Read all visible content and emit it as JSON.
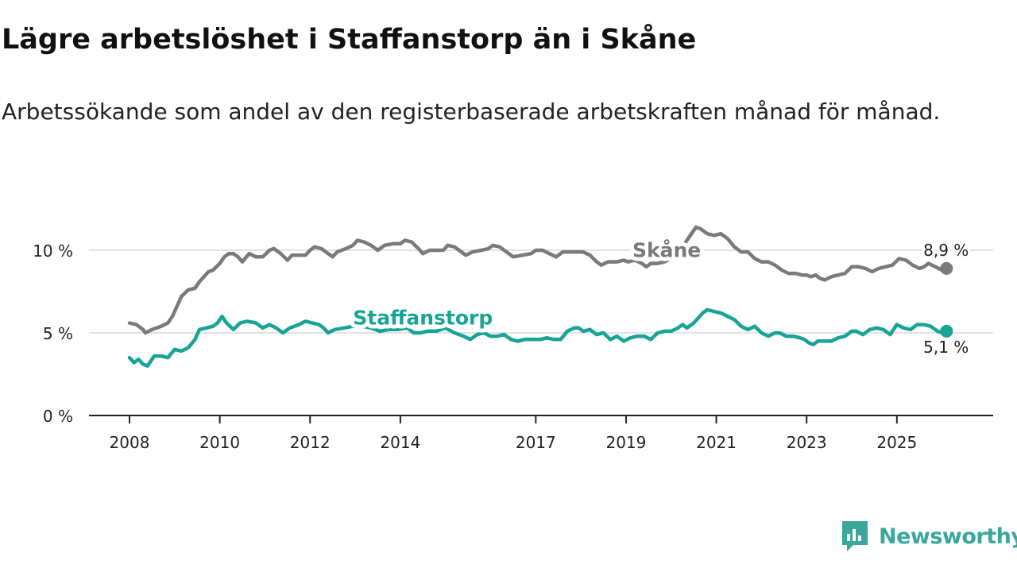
{
  "title": "Lägre arbetslöshet i Staffanstorp än i Skåne",
  "subtitle": "Arbetssökande som andel av den registerbaserade arbetskraften månad för månad.",
  "brand": {
    "name": "Newsworthy",
    "color": "#3aa79a",
    "logo_icon": "newsworthy-chart-bubble-icon"
  },
  "chart_data": {
    "type": "line",
    "title": "Lägre arbetslöshet i Staffanstorp än i Skåne",
    "xlabel": "",
    "ylabel": "",
    "ylim": [
      0,
      12
    ],
    "xlim": [
      2008.0,
      2026.2
    ],
    "grid": true,
    "y_ticks": [
      {
        "value": 0,
        "label": "0 %"
      },
      {
        "value": 5,
        "label": "5 %"
      },
      {
        "value": 10,
        "label": "10 %"
      }
    ],
    "x_ticks": [
      {
        "value": 2008,
        "label": "2008"
      },
      {
        "value": 2010,
        "label": "2010"
      },
      {
        "value": 2012,
        "label": "2012"
      },
      {
        "value": 2014,
        "label": "2014"
      },
      {
        "value": 2017,
        "label": "2017"
      },
      {
        "value": 2019,
        "label": "2019"
      },
      {
        "value": 2021,
        "label": "2021"
      },
      {
        "value": 2023,
        "label": "2023"
      },
      {
        "value": 2025,
        "label": "2025"
      }
    ],
    "series": [
      {
        "name": "Skåne",
        "color": "#7a7a7e",
        "label": "Skåne",
        "end_label": "8,9 %",
        "points": [
          [
            2008.0,
            5.6
          ],
          [
            2008.15,
            5.5
          ],
          [
            2008.3,
            5.2
          ],
          [
            2008.35,
            5.0
          ],
          [
            2008.5,
            5.2
          ],
          [
            2008.7,
            5.4
          ],
          [
            2008.85,
            5.6
          ],
          [
            2008.95,
            6.0
          ],
          [
            2009.05,
            6.6
          ],
          [
            2009.15,
            7.2
          ],
          [
            2009.3,
            7.6
          ],
          [
            2009.45,
            7.7
          ],
          [
            2009.55,
            8.1
          ],
          [
            2009.65,
            8.4
          ],
          [
            2009.75,
            8.7
          ],
          [
            2009.85,
            8.8
          ],
          [
            2010.0,
            9.2
          ],
          [
            2010.1,
            9.6
          ],
          [
            2010.2,
            9.8
          ],
          [
            2010.3,
            9.8
          ],
          [
            2010.4,
            9.6
          ],
          [
            2010.5,
            9.3
          ],
          [
            2010.65,
            9.8
          ],
          [
            2010.8,
            9.6
          ],
          [
            2010.95,
            9.6
          ],
          [
            2011.1,
            10.0
          ],
          [
            2011.2,
            10.1
          ],
          [
            2011.35,
            9.8
          ],
          [
            2011.5,
            9.4
          ],
          [
            2011.6,
            9.7
          ],
          [
            2011.75,
            9.7
          ],
          [
            2011.9,
            9.7
          ],
          [
            2012.0,
            10.0
          ],
          [
            2012.1,
            10.2
          ],
          [
            2012.25,
            10.1
          ],
          [
            2012.4,
            9.8
          ],
          [
            2012.5,
            9.6
          ],
          [
            2012.6,
            9.9
          ],
          [
            2012.8,
            10.1
          ],
          [
            2012.95,
            10.3
          ],
          [
            2013.05,
            10.6
          ],
          [
            2013.2,
            10.5
          ],
          [
            2013.35,
            10.3
          ],
          [
            2013.5,
            10.0
          ],
          [
            2013.65,
            10.3
          ],
          [
            2013.85,
            10.4
          ],
          [
            2014.0,
            10.4
          ],
          [
            2014.1,
            10.6
          ],
          [
            2014.25,
            10.5
          ],
          [
            2014.4,
            10.1
          ],
          [
            2014.5,
            9.8
          ],
          [
            2014.65,
            10.0
          ],
          [
            2014.8,
            10.0
          ],
          [
            2014.95,
            10.0
          ],
          [
            2015.05,
            10.3
          ],
          [
            2015.2,
            10.2
          ],
          [
            2015.35,
            9.9
          ],
          [
            2015.45,
            9.7
          ],
          [
            2015.6,
            9.9
          ],
          [
            2015.8,
            10.0
          ],
          [
            2015.95,
            10.1
          ],
          [
            2016.05,
            10.3
          ],
          [
            2016.2,
            10.2
          ],
          [
            2016.35,
            9.9
          ],
          [
            2016.5,
            9.6
          ],
          [
            2016.7,
            9.7
          ],
          [
            2016.9,
            9.8
          ],
          [
            2017.0,
            10.0
          ],
          [
            2017.15,
            10.0
          ],
          [
            2017.3,
            9.8
          ],
          [
            2017.45,
            9.6
          ],
          [
            2017.6,
            9.9
          ],
          [
            2017.8,
            9.9
          ],
          [
            2017.95,
            9.9
          ],
          [
            2018.05,
            9.9
          ],
          [
            2018.2,
            9.7
          ],
          [
            2018.35,
            9.3
          ],
          [
            2018.45,
            9.1
          ],
          [
            2018.6,
            9.3
          ],
          [
            2018.8,
            9.3
          ],
          [
            2018.95,
            9.4
          ],
          [
            2019.05,
            9.3
          ],
          [
            2019.2,
            9.4
          ],
          [
            2019.35,
            9.2
          ],
          [
            2019.45,
            9.0
          ],
          [
            2019.55,
            9.2
          ],
          [
            2019.7,
            9.2
          ],
          [
            2019.85,
            9.3
          ],
          [
            2020.0,
            9.5
          ],
          [
            2020.2,
            10.0
          ],
          [
            2020.35,
            10.6
          ],
          [
            2020.45,
            11.0
          ],
          [
            2020.55,
            11.4
          ],
          [
            2020.65,
            11.3
          ],
          [
            2020.8,
            11.0
          ],
          [
            2020.95,
            10.9
          ],
          [
            2021.1,
            11.0
          ],
          [
            2021.25,
            10.7
          ],
          [
            2021.4,
            10.2
          ],
          [
            2021.55,
            9.9
          ],
          [
            2021.7,
            9.9
          ],
          [
            2021.85,
            9.5
          ],
          [
            2022.0,
            9.3
          ],
          [
            2022.15,
            9.3
          ],
          [
            2022.3,
            9.1
          ],
          [
            2022.45,
            8.8
          ],
          [
            2022.6,
            8.6
          ],
          [
            2022.75,
            8.6
          ],
          [
            2022.9,
            8.5
          ],
          [
            2023.0,
            8.5
          ],
          [
            2023.1,
            8.4
          ],
          [
            2023.2,
            8.5
          ],
          [
            2023.3,
            8.3
          ],
          [
            2023.4,
            8.2
          ],
          [
            2023.55,
            8.4
          ],
          [
            2023.7,
            8.5
          ],
          [
            2023.85,
            8.6
          ],
          [
            2024.0,
            9.0
          ],
          [
            2024.15,
            9.0
          ],
          [
            2024.3,
            8.9
          ],
          [
            2024.45,
            8.7
          ],
          [
            2024.6,
            8.9
          ],
          [
            2024.75,
            9.0
          ],
          [
            2024.9,
            9.1
          ],
          [
            2025.05,
            9.5
          ],
          [
            2025.2,
            9.4
          ],
          [
            2025.35,
            9.1
          ],
          [
            2025.5,
            8.9
          ],
          [
            2025.6,
            9.0
          ],
          [
            2025.7,
            9.2
          ],
          [
            2025.85,
            9.0
          ],
          [
            2026.0,
            8.8
          ],
          [
            2026.1,
            8.9
          ]
        ]
      },
      {
        "name": "Staffanstorp",
        "color": "#17a396",
        "label": "Staffanstorp",
        "end_label": "5,1 %",
        "points": [
          [
            2008.0,
            3.5
          ],
          [
            2008.1,
            3.2
          ],
          [
            2008.2,
            3.4
          ],
          [
            2008.3,
            3.1
          ],
          [
            2008.4,
            3.0
          ],
          [
            2008.55,
            3.6
          ],
          [
            2008.7,
            3.6
          ],
          [
            2008.85,
            3.5
          ],
          [
            2009.0,
            4.0
          ],
          [
            2009.15,
            3.9
          ],
          [
            2009.3,
            4.1
          ],
          [
            2009.45,
            4.6
          ],
          [
            2009.55,
            5.2
          ],
          [
            2009.7,
            5.3
          ],
          [
            2009.85,
            5.4
          ],
          [
            2009.95,
            5.6
          ],
          [
            2010.05,
            6.0
          ],
          [
            2010.15,
            5.6
          ],
          [
            2010.3,
            5.2
          ],
          [
            2010.45,
            5.6
          ],
          [
            2010.6,
            5.7
          ],
          [
            2010.8,
            5.6
          ],
          [
            2010.95,
            5.3
          ],
          [
            2011.1,
            5.5
          ],
          [
            2011.25,
            5.3
          ],
          [
            2011.4,
            5.0
          ],
          [
            2011.55,
            5.3
          ],
          [
            2011.75,
            5.5
          ],
          [
            2011.9,
            5.7
          ],
          [
            2012.05,
            5.6
          ],
          [
            2012.2,
            5.5
          ],
          [
            2012.3,
            5.3
          ],
          [
            2012.4,
            5.0
          ],
          [
            2012.55,
            5.2
          ],
          [
            2012.75,
            5.3
          ],
          [
            2012.95,
            5.4
          ],
          [
            2013.15,
            5.4
          ],
          [
            2013.35,
            5.3
          ],
          [
            2013.55,
            5.1
          ],
          [
            2013.75,
            5.2
          ],
          [
            2013.95,
            5.2
          ],
          [
            2014.15,
            5.3
          ],
          [
            2014.3,
            5.0
          ],
          [
            2014.45,
            5.0
          ],
          [
            2014.6,
            5.1
          ],
          [
            2014.8,
            5.1
          ],
          [
            2015.0,
            5.3
          ],
          [
            2015.2,
            5.0
          ],
          [
            2015.4,
            4.8
          ],
          [
            2015.55,
            4.6
          ],
          [
            2015.7,
            4.9
          ],
          [
            2015.85,
            5.0
          ],
          [
            2016.0,
            4.8
          ],
          [
            2016.15,
            4.8
          ],
          [
            2016.3,
            4.9
          ],
          [
            2016.45,
            4.6
          ],
          [
            2016.6,
            4.5
          ],
          [
            2016.75,
            4.6
          ],
          [
            2016.95,
            4.6
          ],
          [
            2017.1,
            4.6
          ],
          [
            2017.25,
            4.7
          ],
          [
            2017.4,
            4.6
          ],
          [
            2017.55,
            4.6
          ],
          [
            2017.7,
            5.1
          ],
          [
            2017.85,
            5.3
          ],
          [
            2017.95,
            5.3
          ],
          [
            2018.05,
            5.1
          ],
          [
            2018.2,
            5.2
          ],
          [
            2018.35,
            4.9
          ],
          [
            2018.5,
            5.0
          ],
          [
            2018.65,
            4.6
          ],
          [
            2018.8,
            4.8
          ],
          [
            2018.95,
            4.5
          ],
          [
            2019.1,
            4.7
          ],
          [
            2019.25,
            4.8
          ],
          [
            2019.4,
            4.8
          ],
          [
            2019.55,
            4.6
          ],
          [
            2019.7,
            5.0
          ],
          [
            2019.85,
            5.1
          ],
          [
            2020.0,
            5.1
          ],
          [
            2020.15,
            5.3
          ],
          [
            2020.25,
            5.5
          ],
          [
            2020.35,
            5.3
          ],
          [
            2020.5,
            5.6
          ],
          [
            2020.6,
            5.9
          ],
          [
            2020.7,
            6.2
          ],
          [
            2020.8,
            6.4
          ],
          [
            2020.95,
            6.3
          ],
          [
            2021.1,
            6.2
          ],
          [
            2021.25,
            6.0
          ],
          [
            2021.4,
            5.8
          ],
          [
            2021.55,
            5.4
          ],
          [
            2021.7,
            5.2
          ],
          [
            2021.85,
            5.4
          ],
          [
            2022.0,
            5.0
          ],
          [
            2022.15,
            4.8
          ],
          [
            2022.3,
            5.0
          ],
          [
            2022.4,
            5.0
          ],
          [
            2022.55,
            4.8
          ],
          [
            2022.7,
            4.8
          ],
          [
            2022.85,
            4.7
          ],
          [
            2022.95,
            4.6
          ],
          [
            2023.05,
            4.4
          ],
          [
            2023.15,
            4.3
          ],
          [
            2023.25,
            4.5
          ],
          [
            2023.4,
            4.5
          ],
          [
            2023.55,
            4.5
          ],
          [
            2023.7,
            4.7
          ],
          [
            2023.85,
            4.8
          ],
          [
            2024.0,
            5.1
          ],
          [
            2024.1,
            5.1
          ],
          [
            2024.25,
            4.9
          ],
          [
            2024.4,
            5.2
          ],
          [
            2024.55,
            5.3
          ],
          [
            2024.7,
            5.2
          ],
          [
            2024.85,
            4.9
          ],
          [
            2025.0,
            5.5
          ],
          [
            2025.15,
            5.3
          ],
          [
            2025.3,
            5.2
          ],
          [
            2025.45,
            5.5
          ],
          [
            2025.6,
            5.5
          ],
          [
            2025.75,
            5.4
          ],
          [
            2025.9,
            5.1
          ],
          [
            2026.0,
            5.0
          ],
          [
            2026.1,
            5.1
          ]
        ]
      }
    ]
  }
}
